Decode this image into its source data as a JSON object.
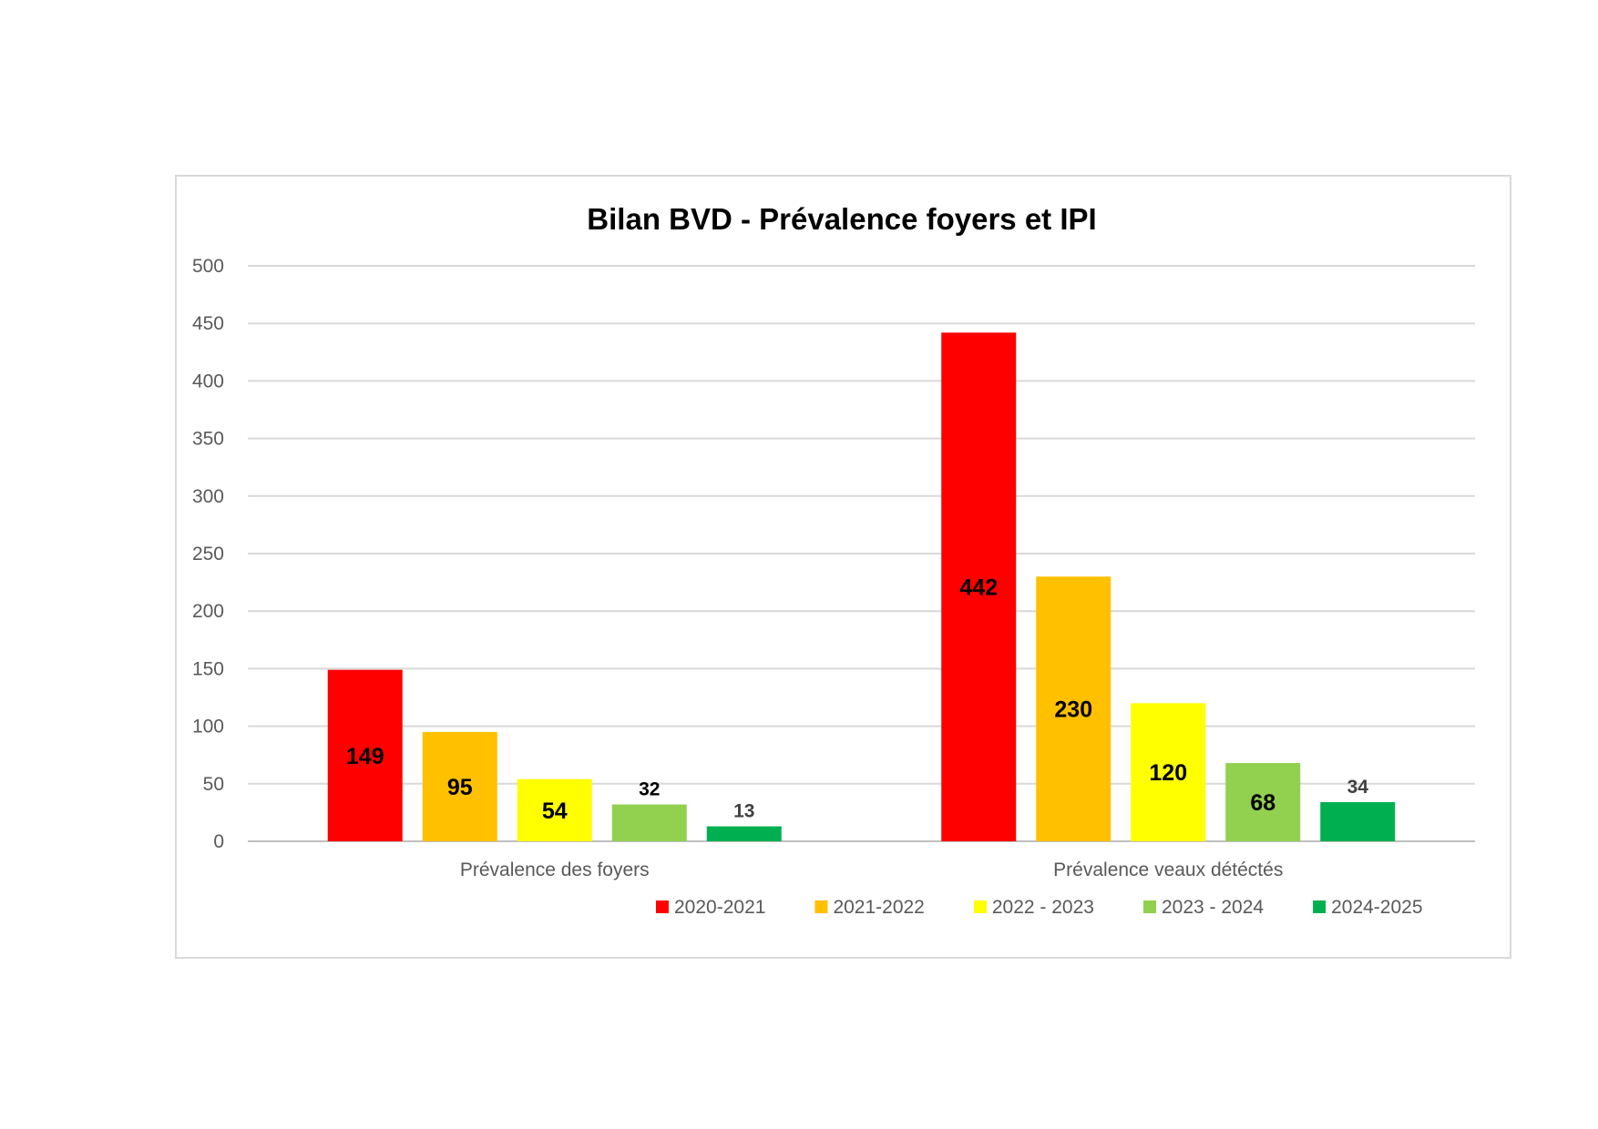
{
  "chart_data": {
    "type": "bar",
    "title": "Bilan BVD - Prévalence foyers et IPI",
    "xlabel": "",
    "ylabel": "",
    "categories": [
      "Prévalence des foyers",
      "Prévalence veaux détéctés"
    ],
    "ylim": [
      0,
      500
    ],
    "yticks": [
      0,
      50,
      100,
      150,
      200,
      250,
      300,
      350,
      400,
      450,
      500
    ],
    "grid": true,
    "legend_position": "bottom",
    "series": [
      {
        "name": "2020-2021",
        "color": "#ff0000",
        "values": [
          149,
          442
        ],
        "label_color": "#000000",
        "label_position": "inside-center"
      },
      {
        "name": "2021-2022",
        "color": "#ffc000",
        "values": [
          95,
          230
        ],
        "label_color": "#000000",
        "label_position": "inside-center"
      },
      {
        "name": "2022 - 2023",
        "color": "#ffff00",
        "values": [
          54,
          120
        ],
        "label_color": "#000000",
        "label_position": "inside-center"
      },
      {
        "name": "2023 - 2024",
        "color": "#92d050",
        "values": [
          32,
          68
        ],
        "label_color": "#000000",
        "label_position": [
          "outside-end",
          "inside-center"
        ]
      },
      {
        "name": "2024-2025",
        "color": "#00b050",
        "values": [
          13,
          34
        ],
        "label_color": "#404040",
        "label_position": "outside-end"
      }
    ]
  }
}
